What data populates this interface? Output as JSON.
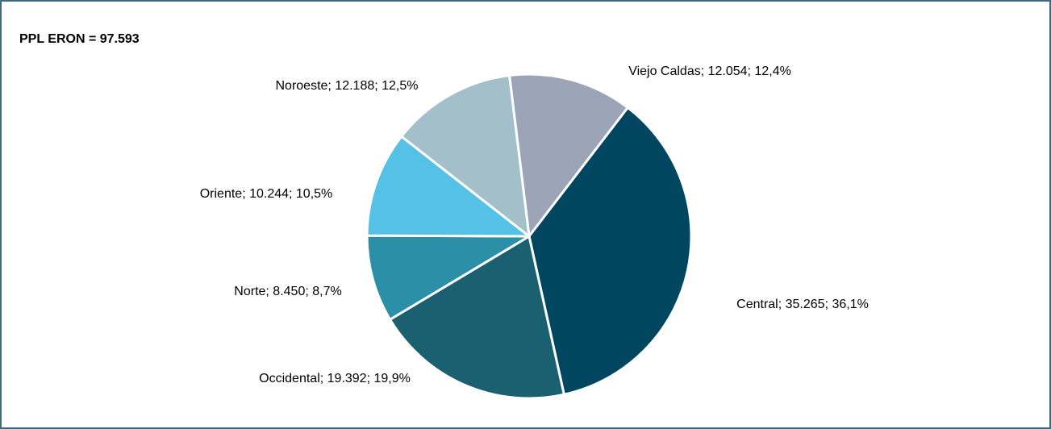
{
  "chart_data": {
    "type": "pie",
    "title": "PPL ERON = 97.593",
    "values": [
      12054,
      35265,
      19392,
      8450,
      10244,
      12188
    ],
    "value_labels": [
      "Viejo Caldas; 12.054; 12,4%",
      "Central; 35.265; 36,1%",
      "Occidental; 19.392; 19,9%",
      "Norte; 8.450; 8,7%",
      "Oriente; 10.244; 10,5%",
      "Noroeste; 12.188; 12,5%"
    ],
    "colors": [
      "#9ca5b8",
      "#004660",
      "#1b6070",
      "#2b8fa8",
      "#55c1e6",
      "#a3bfca"
    ]
  }
}
